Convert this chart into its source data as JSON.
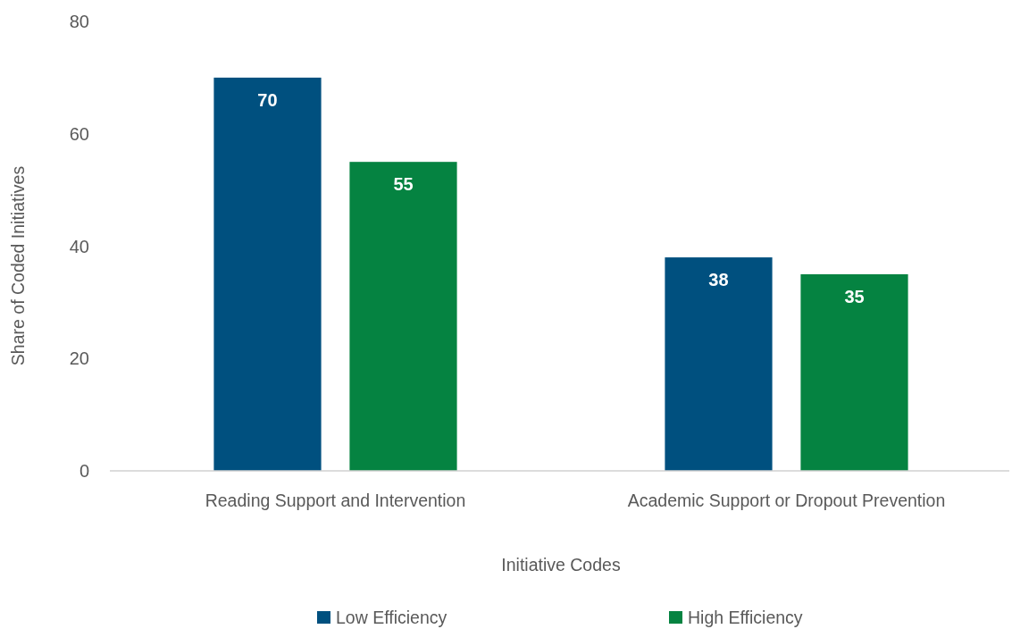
{
  "chart_data": {
    "type": "bar",
    "xlabel": "Initiative Codes",
    "ylabel": "Share of Coded Initiatives",
    "categories": [
      "Reading Support and Intervention",
      "Academic Support or Dropout Prevention"
    ],
    "series": [
      {
        "name": "Low Efficiency",
        "color": "#00507f",
        "values": [
          70,
          38
        ]
      },
      {
        "name": "High Efficiency",
        "color": "#058341",
        "values": [
          55,
          35
        ]
      }
    ],
    "ylim": [
      0,
      80
    ],
    "yticks": [
      0,
      20,
      40,
      60,
      80
    ],
    "data_labels": true,
    "legend": "bottom"
  }
}
